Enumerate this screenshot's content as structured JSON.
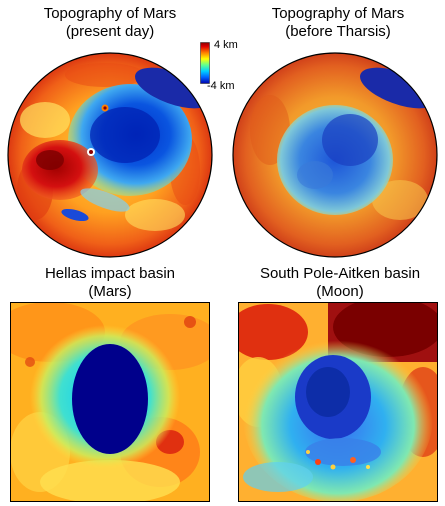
{
  "panels": {
    "mars_present": {
      "title_line1": "Topography of Mars",
      "title_line2": "(present day)"
    },
    "mars_before": {
      "title_line1": "Topography of Mars",
      "title_line2": "(before Tharsis)"
    },
    "hellas": {
      "title_line1": "Hellas impact basin",
      "title_line2": "(Mars)"
    },
    "spa": {
      "title_line1": "South Pole-Aitken basin",
      "title_line2": "(Moon)"
    }
  },
  "colorbar": {
    "max_label": "4 km",
    "min_label": "-4 km",
    "colors": [
      "#0000aa",
      "#0060ff",
      "#00d0ff",
      "#60ff90",
      "#ffff00",
      "#ff8000",
      "#e00000",
      "#8b0000"
    ]
  }
}
